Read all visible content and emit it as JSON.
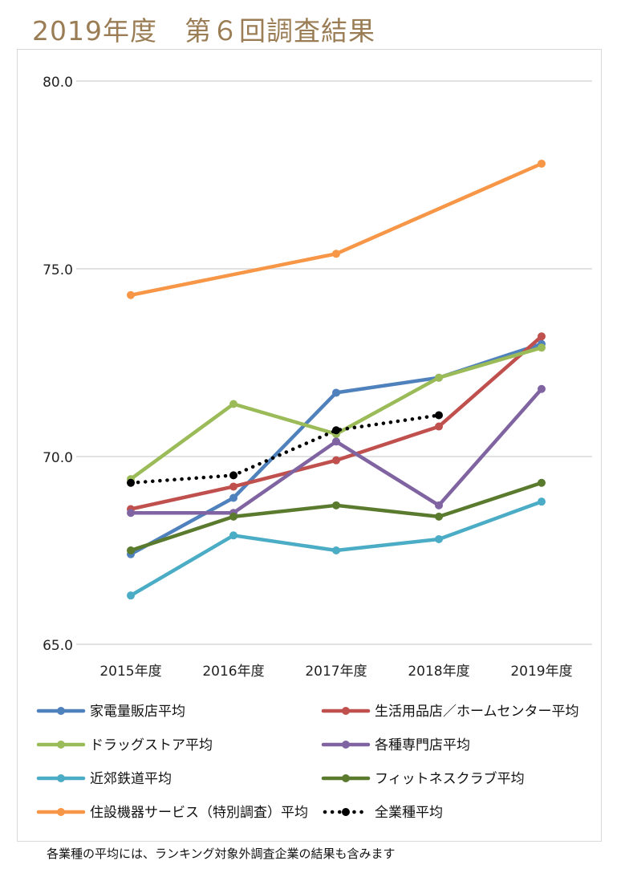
{
  "title": "2019年度　第６回調査結果",
  "footnote": "各業種の平均には、ランキング対象外調査企業の結果も含みます",
  "chart_data": {
    "type": "line",
    "categories": [
      "2015年度",
      "2016年度",
      "2017年度",
      "2018年度",
      "2019年度"
    ],
    "ylim": [
      65,
      80
    ],
    "yticks": [
      "65.0",
      "70.0",
      "75.0",
      "80.0"
    ],
    "grid": true,
    "legend_position": "bottom",
    "series": [
      {
        "name": "家電量販店平均",
        "color": "#4f81bd",
        "style": "solid",
        "values": [
          67.4,
          68.9,
          71.7,
          72.1,
          73.0
        ]
      },
      {
        "name": "生活用品店／ホームセンター平均",
        "color": "#c0504d",
        "style": "solid",
        "values": [
          68.6,
          69.2,
          69.9,
          70.8,
          73.2
        ]
      },
      {
        "name": "ドラッグストア平均",
        "color": "#9bbb59",
        "style": "solid",
        "values": [
          69.4,
          71.4,
          70.6,
          72.1,
          72.9
        ]
      },
      {
        "name": "各種専門店平均",
        "color": "#8064a2",
        "style": "solid",
        "values": [
          68.5,
          68.5,
          70.4,
          68.7,
          71.8
        ]
      },
      {
        "name": "近郊鉄道平均",
        "color": "#4bacc6",
        "style": "solid",
        "values": [
          66.3,
          67.9,
          67.5,
          67.8,
          68.8
        ]
      },
      {
        "name": "フィットネスクラブ平均",
        "color": "#5a7a2e",
        "style": "solid",
        "values": [
          67.5,
          68.4,
          68.7,
          68.4,
          69.3
        ]
      },
      {
        "name": "住設機器サービス（特別調査）平均",
        "color": "#f79646",
        "style": "solid",
        "values": [
          74.3,
          null,
          75.4,
          null,
          77.8
        ]
      },
      {
        "name": "全業種平均",
        "color": "#000000",
        "style": "dotted",
        "values": [
          69.3,
          69.5,
          70.7,
          71.1,
          null
        ]
      }
    ]
  }
}
